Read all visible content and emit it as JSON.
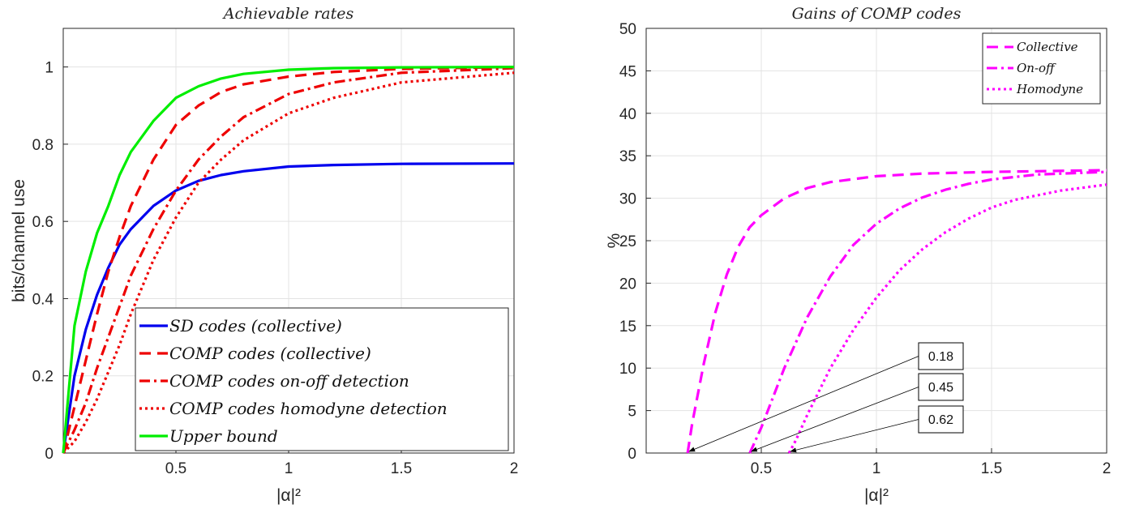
{
  "chart_data": [
    {
      "type": "line",
      "title": "Achievable rates",
      "xlabel": "|α|²",
      "ylabel": "bits/channel use",
      "xlim": [
        0,
        2
      ],
      "ylim": [
        0,
        1.1
      ],
      "xticks": [
        "0.5",
        "1",
        "1.5",
        "2"
      ],
      "yticks": [
        "0",
        "0.2",
        "0.4",
        "0.6",
        "0.8",
        "1"
      ],
      "grid": true,
      "legend_position": "bottom-right",
      "series": [
        {
          "name": "SD codes (collective)",
          "color": "#0000ee",
          "style": "solid",
          "x": [
            0,
            0.05,
            0.1,
            0.15,
            0.2,
            0.25,
            0.3,
            0.4,
            0.5,
            0.6,
            0.7,
            0.8,
            1.0,
            1.2,
            1.5,
            2.0
          ],
          "y": [
            0,
            0.2,
            0.32,
            0.41,
            0.48,
            0.54,
            0.58,
            0.64,
            0.68,
            0.705,
            0.72,
            0.73,
            0.742,
            0.746,
            0.749,
            0.75
          ]
        },
        {
          "name": "COMP codes (collective)",
          "color": "#ee0000",
          "style": "dashed",
          "x": [
            0,
            0.05,
            0.1,
            0.15,
            0.2,
            0.25,
            0.3,
            0.4,
            0.5,
            0.6,
            0.7,
            0.8,
            1.0,
            1.2,
            1.5,
            2.0
          ],
          "y": [
            0,
            0.12,
            0.24,
            0.36,
            0.47,
            0.56,
            0.64,
            0.76,
            0.85,
            0.9,
            0.935,
            0.955,
            0.975,
            0.987,
            0.995,
            1.0
          ]
        },
        {
          "name": "COMP codes on-off detection",
          "color": "#ee0000",
          "style": "dashdot",
          "x": [
            0,
            0.05,
            0.1,
            0.15,
            0.2,
            0.25,
            0.3,
            0.4,
            0.5,
            0.6,
            0.7,
            0.8,
            1.0,
            1.2,
            1.5,
            2.0
          ],
          "y": [
            0,
            0.06,
            0.13,
            0.22,
            0.3,
            0.38,
            0.46,
            0.58,
            0.68,
            0.76,
            0.82,
            0.87,
            0.93,
            0.96,
            0.985,
            0.997
          ]
        },
        {
          "name": "COMP codes homodyne detection",
          "color": "#ee0000",
          "style": "dotted",
          "x": [
            0,
            0.05,
            0.1,
            0.15,
            0.2,
            0.25,
            0.3,
            0.4,
            0.5,
            0.6,
            0.7,
            0.8,
            1.0,
            1.2,
            1.5,
            2.0
          ],
          "y": [
            0,
            0.03,
            0.08,
            0.14,
            0.21,
            0.28,
            0.36,
            0.5,
            0.61,
            0.7,
            0.76,
            0.81,
            0.88,
            0.92,
            0.96,
            0.985
          ]
        },
        {
          "name": "Upper bound",
          "color": "#00ee00",
          "style": "solid",
          "x": [
            0,
            0.05,
            0.1,
            0.15,
            0.2,
            0.25,
            0.3,
            0.4,
            0.5,
            0.6,
            0.7,
            0.8,
            1.0,
            1.2,
            1.5,
            2.0
          ],
          "y": [
            0,
            0.33,
            0.47,
            0.57,
            0.64,
            0.72,
            0.78,
            0.86,
            0.92,
            0.95,
            0.97,
            0.982,
            0.993,
            0.997,
            0.999,
            1.0
          ]
        }
      ]
    },
    {
      "type": "line",
      "title": "Gains of COMP codes",
      "xlabel": "|α|²",
      "ylabel": "%",
      "xlim": [
        0,
        2
      ],
      "ylim": [
        0,
        50
      ],
      "xticks": [
        "0.5",
        "1",
        "1.5",
        "2"
      ],
      "yticks": [
        "0",
        "5",
        "10",
        "15",
        "20",
        "25",
        "30",
        "35",
        "40",
        "45",
        "50"
      ],
      "grid": true,
      "legend_position": "top-right",
      "series": [
        {
          "name": "Collective",
          "color": "#ff00ff",
          "style": "dashed",
          "x": [
            0.18,
            0.2,
            0.25,
            0.3,
            0.35,
            0.4,
            0.45,
            0.5,
            0.6,
            0.7,
            0.8,
            1.0,
            1.2,
            1.5,
            2.0
          ],
          "y": [
            0,
            3.5,
            10.5,
            16.5,
            21,
            24.3,
            26.6,
            28,
            30,
            31.2,
            31.9,
            32.6,
            32.9,
            33.1,
            33.3
          ]
        },
        {
          "name": "On-off",
          "color": "#ff00ff",
          "style": "dashdot",
          "x": [
            0.45,
            0.5,
            0.55,
            0.6,
            0.7,
            0.8,
            0.9,
            1.0,
            1.1,
            1.2,
            1.3,
            1.4,
            1.5,
            1.7,
            2.0
          ],
          "y": [
            0,
            3,
            6.5,
            10,
            16,
            20.8,
            24.5,
            27,
            28.8,
            30.1,
            31,
            31.7,
            32.2,
            32.8,
            33.1
          ]
        },
        {
          "name": "Homodyne",
          "color": "#ff00ff",
          "style": "dotted",
          "x": [
            0.62,
            0.65,
            0.7,
            0.8,
            0.9,
            1.0,
            1.1,
            1.2,
            1.3,
            1.4,
            1.5,
            1.6,
            1.8,
            2.0
          ],
          "y": [
            0,
            1.5,
            4.5,
            10,
            14.5,
            18.3,
            21.5,
            24,
            26,
            27.6,
            28.9,
            29.8,
            30.9,
            31.6
          ]
        }
      ],
      "annotations": [
        {
          "text": "0.18",
          "x": 0.18,
          "y": 0
        },
        {
          "text": "0.45",
          "x": 0.45,
          "y": 0
        },
        {
          "text": "0.62",
          "x": 0.62,
          "y": 0
        }
      ]
    }
  ]
}
